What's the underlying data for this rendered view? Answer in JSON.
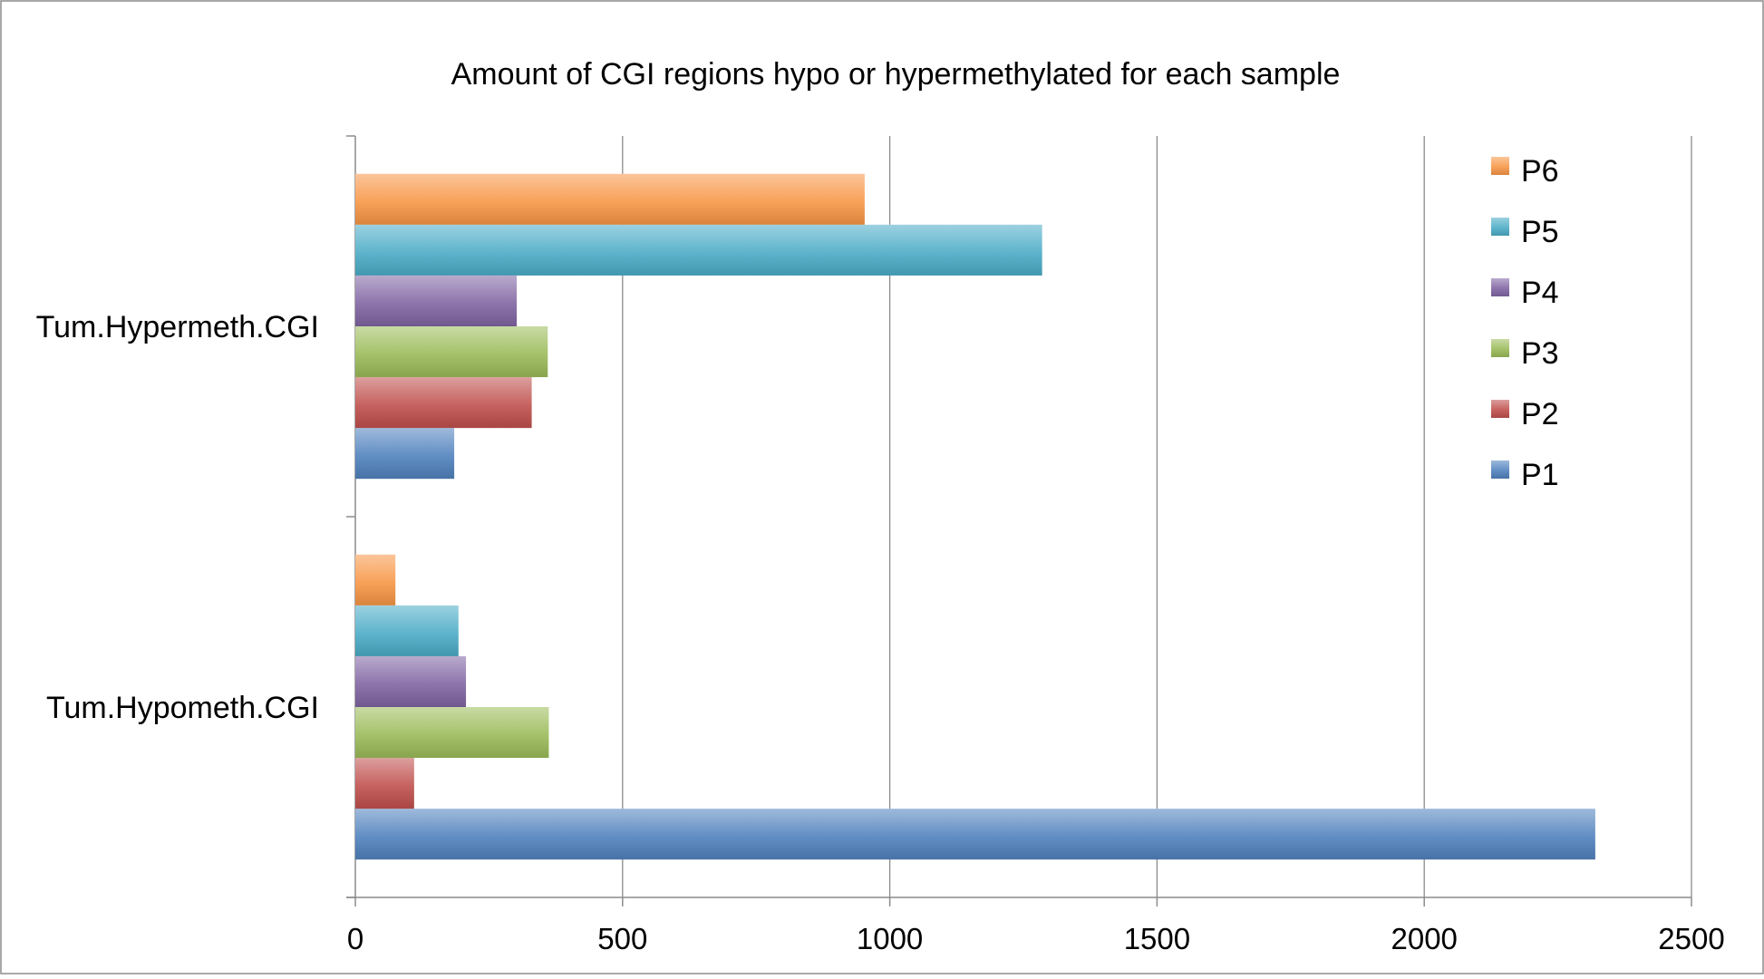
{
  "chart_data": {
    "type": "bar",
    "orientation": "horizontal",
    "title": "Amount of CGI regions hypo or hypermethylated for each sample",
    "xlabel": "",
    "ylabel": "",
    "categories": [
      "Tum.Hypometh.CGI",
      "Tum.Hypermeth.CGI"
    ],
    "xlim": [
      0,
      2500
    ],
    "xticks": [
      0,
      500,
      1000,
      1500,
      2000,
      2500
    ],
    "grid": "vertical",
    "legend_position": "right",
    "series": [
      {
        "name": "P1",
        "color": "#4f81bd",
        "values": [
          2320,
          185
        ]
      },
      {
        "name": "P2",
        "color": "#c0504d",
        "values": [
          110,
          330
        ]
      },
      {
        "name": "P3",
        "color": "#9bbb59",
        "values": [
          362,
          360
        ]
      },
      {
        "name": "P4",
        "color": "#8064a2",
        "values": [
          207,
          302
        ]
      },
      {
        "name": "P5",
        "color": "#4bacc6",
        "values": [
          193,
          1285
        ]
      },
      {
        "name": "P6",
        "color": "#f79646",
        "values": [
          75,
          953
        ]
      }
    ]
  }
}
